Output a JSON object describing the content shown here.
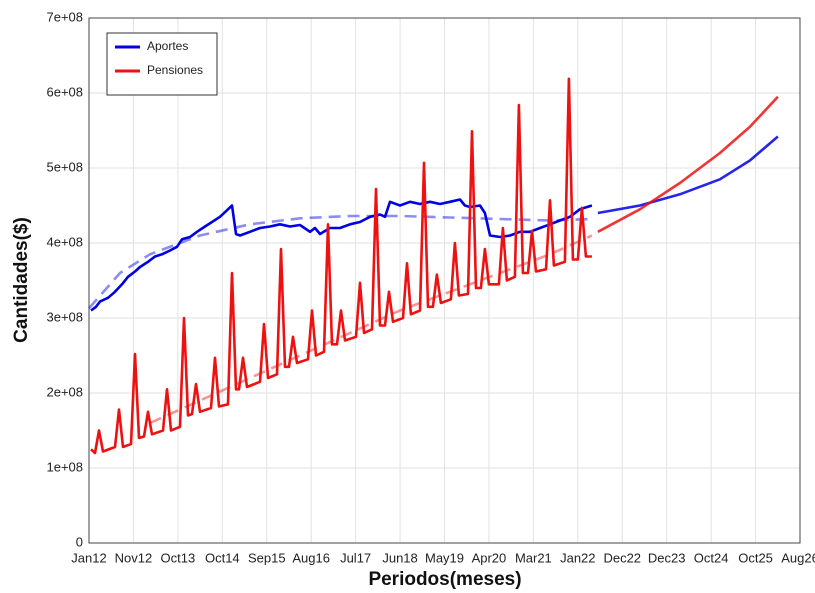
{
  "chart_data": {
    "type": "line",
    "xlabel": "Periodos(meses)",
    "ylabel": "Cantidades($)",
    "xlim": [
      0,
      160
    ],
    "ylim": [
      0,
      700000000.0
    ],
    "grid": true,
    "legend": "upper left",
    "xticks": [
      {
        "value": 0,
        "label": "Jan12"
      },
      {
        "value": 10,
        "label": "Nov12"
      },
      {
        "value": 20,
        "label": "Oct13"
      },
      {
        "value": 30,
        "label": "Oct14"
      },
      {
        "value": 40,
        "label": "Sep15"
      },
      {
        "value": 50,
        "label": "Aug16"
      },
      {
        "value": 60,
        "label": "Jul17"
      },
      {
        "value": 70,
        "label": "Jun18"
      },
      {
        "value": 80,
        "label": "May19"
      },
      {
        "value": 90,
        "label": "Apr20"
      },
      {
        "value": 100,
        "label": "Mar21"
      },
      {
        "value": 110,
        "label": "Jan22"
      },
      {
        "value": 120,
        "label": "Dec22"
      },
      {
        "value": 130,
        "label": "Dec23"
      },
      {
        "value": 140,
        "label": "Oct24"
      },
      {
        "value": 150,
        "label": "Oct25"
      },
      {
        "value": 160,
        "label": "Aug26"
      }
    ],
    "yticks": [
      0,
      {
        "value": 100000000.0,
        "label": "1e+08"
      },
      {
        "value": 200000000.0,
        "label": "2e+08"
      },
      {
        "value": 300000000.0,
        "label": "3e+08"
      },
      {
        "value": 400000000.0,
        "label": "4e+08"
      },
      {
        "value": 500000000.0,
        "label": "5e+08"
      },
      {
        "value": 600000000.0,
        "label": "6e+08"
      },
      {
        "value": 700000000.0,
        "label": "7e+08"
      }
    ],
    "series": [
      {
        "name": "Aportes",
        "color": "#0000e6",
        "x": [
          0.45,
          1.58,
          2.48,
          4.28,
          5.85,
          7.43,
          8.78,
          10.35,
          11.48,
          13.28,
          14.85,
          16.43,
          18.23,
          19.8,
          20.93,
          22.73,
          24.3,
          26.1,
          27.68,
          29.48,
          31.28,
          32.18,
          33.08,
          33.98,
          36.23,
          38.48,
          40.73,
          42.98,
          45.23,
          47.48,
          49.73,
          50.85,
          51.98,
          54.23,
          56.48,
          58.73,
          60.98,
          63.23,
          65.48,
          66.6,
          67.73,
          69.98,
          72.23,
          74.48,
          76.73,
          78.98,
          81.23,
          83.48,
          84.6,
          85.73,
          87.98,
          89.1,
          90.23,
          92.48,
          94.73,
          96.98,
          99.23,
          101.48,
          103.73,
          105.98,
          108.23,
          110.48,
          113.18
        ],
        "values": [
          310000000.0,
          315000000.0,
          322000000.0,
          327000000.0,
          335000000.0,
          345000000.0,
          355000000.0,
          362000000.0,
          368000000.0,
          375000000.0,
          382000000.0,
          385000000.0,
          390000000.0,
          395000000.0,
          405000000.0,
          408000000.0,
          415000000.0,
          422000000.0,
          428000000.0,
          435000000.0,
          445000000.0,
          450000000.0,
          412000000.0,
          410000000.0,
          415000000.0,
          420000000.0,
          422000000.0,
          425000000.0,
          422000000.0,
          424000000.0,
          415000000.0,
          420000000.0,
          412000000.0,
          420000000.0,
          420000000.0,
          425000000.0,
          428000000.0,
          435000000.0,
          438000000.0,
          435000000.0,
          455000000.0,
          450000000.0,
          455000000.0,
          452000000.0,
          455000000.0,
          452000000.0,
          455000000.0,
          458000000.0,
          450000000.0,
          448000000.0,
          450000000.0,
          440000000.0,
          410000000.0,
          408000000.0,
          410000000.0,
          415000000.0,
          415000000.0,
          420000000.0,
          425000000.0,
          430000000.0,
          435000000.0,
          445000000.0,
          450000000.0
        ],
        "trend": {
          "x": [
            0,
            6.98,
            13.73,
            24.98,
            36.23,
            47.48,
            58.73,
            69.98,
            81.23,
            92.48,
            103.73,
            113.18
          ],
          "values": [
            313000000.0,
            360000000.0,
            385000000.0,
            410000000.0,
            425000000.0,
            433000000.0,
            436000000.0,
            436000000.0,
            434000000.0,
            432000000.0,
            430000000.0,
            432000000.0
          ]
        },
        "forecast": {
          "x": [
            114.53,
            123.98,
            132.98,
            141.98,
            148.73,
            155.03
          ],
          "values": [
            440000000.0,
            450000000.0,
            465000000.0,
            485000000.0,
            510000000.0,
            542000000.0
          ]
        }
      },
      {
        "name": "Pensiones",
        "color": "#ee1111",
        "x": [
          0.45,
          1.35,
          2.25,
          3.15,
          5.85,
          6.75,
          7.65,
          9.45,
          10.35,
          11.25,
          12.38,
          13.28,
          14.18,
          16.65,
          17.55,
          18.45,
          20.48,
          21.38,
          22.28,
          23.18,
          24.08,
          24.98,
          27.45,
          28.35,
          29.25,
          31.28,
          32.18,
          33.08,
          33.75,
          34.65,
          35.55,
          38.48,
          39.38,
          40.28,
          42.3,
          43.2,
          44.1,
          45.0,
          45.9,
          46.8,
          49.28,
          50.18,
          51.08,
          52.88,
          53.78,
          54.68,
          55.8,
          56.7,
          57.6,
          60.08,
          60.98,
          61.88,
          63.68,
          64.58,
          65.48,
          66.6,
          67.5,
          68.4,
          70.65,
          71.55,
          72.45,
          74.48,
          75.38,
          76.28,
          77.4,
          78.3,
          79.2,
          81.45,
          82.35,
          83.25,
          85.28,
          86.18,
          87.08,
          88.2,
          89.1,
          90.0,
          92.25,
          93.15,
          94.05,
          95.85,
          96.75,
          97.65,
          98.78,
          99.68,
          100.58,
          102.83,
          103.73,
          104.63,
          107.1,
          108.0,
          108.9,
          110.03,
          110.93,
          111.83,
          113.18
        ],
        "values": [
          125000000.0,
          120000000.0,
          150000000.0,
          122000000.0,
          128000000.0,
          178000000.0,
          128000000.0,
          132000000.0,
          252000000.0,
          140000000.0,
          142000000.0,
          175000000.0,
          145000000.0,
          150000000.0,
          205000000.0,
          150000000.0,
          155000000.0,
          300000000.0,
          170000000.0,
          172000000.0,
          212000000.0,
          175000000.0,
          180000000.0,
          247000000.0,
          182000000.0,
          185000000.0,
          360000000.0,
          205000000.0,
          205000000.0,
          247000000.0,
          208000000.0,
          215000000.0,
          292000000.0,
          220000000.0,
          225000000.0,
          392000000.0,
          235000000.0,
          235000000.0,
          275000000.0,
          240000000.0,
          245000000.0,
          310000000.0,
          250000000.0,
          255000000.0,
          425000000.0,
          265000000.0,
          265000000.0,
          310000000.0,
          270000000.0,
          275000000.0,
          347000000.0,
          280000000.0,
          285000000.0,
          472000000.0,
          290000000.0,
          290000000.0,
          335000000.0,
          295000000.0,
          300000000.0,
          373000000.0,
          305000000.0,
          310000000.0,
          507000000.0,
          315000000.0,
          315000000.0,
          358000000.0,
          320000000.0,
          325000000.0,
          400000000.0,
          330000000.0,
          332000000.0,
          549000000.0,
          340000000.0,
          340000000.0,
          392000000.0,
          345000000.0,
          345000000.0,
          420000000.0,
          350000000.0,
          355000000.0,
          584000000.0,
          360000000.0,
          360000000.0,
          416000000.0,
          362000000.0,
          365000000.0,
          457000000.0,
          370000000.0,
          375000000.0,
          619000000.0,
          378000000.0,
          378000000.0,
          447000000.0,
          382000000.0,
          382000000.0
        ],
        "trend": {
          "x": [
            13.73,
            24.98,
            36.23,
            47.48,
            58.73,
            69.98,
            81.23,
            92.48,
            103.73,
            113.18
          ],
          "values": [
            160000000.0,
            190000000.0,
            220000000.0,
            250000000.0,
            280000000.0,
            310000000.0,
            335000000.0,
            360000000.0,
            385000000.0,
            410000000.0
          ]
        },
        "forecast": {
          "x": [
            114.53,
            123.98,
            132.98,
            141.98,
            148.73,
            155.03
          ],
          "values": [
            415000000.0,
            445000000.0,
            480000000.0,
            520000000.0,
            555000000.0,
            595000000.0
          ]
        }
      }
    ]
  }
}
